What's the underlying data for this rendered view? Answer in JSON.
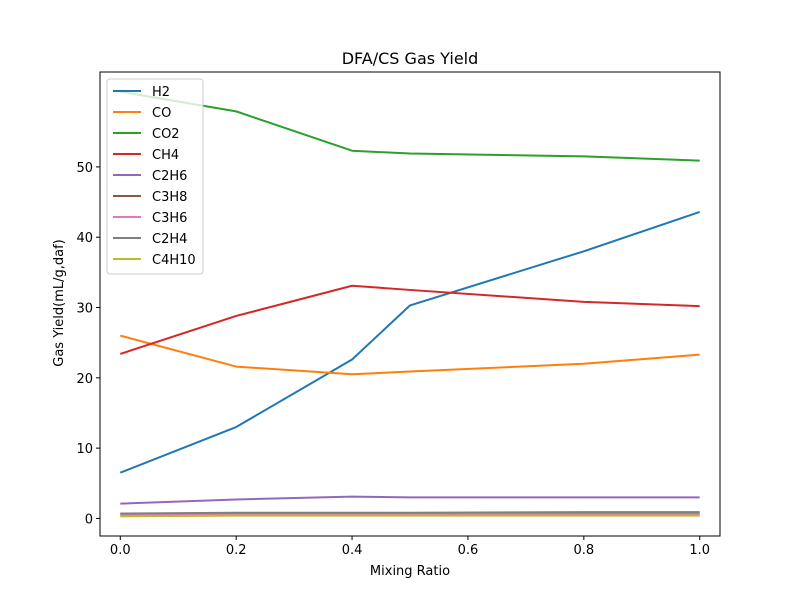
{
  "chart_data": {
    "type": "line",
    "title": "DFA/CS Gas Yield",
    "xlabel": "Mixing Ratio",
    "ylabel": "Gas Yield(mL/g,daf)",
    "xlim": [
      -0.035,
      1.035
    ],
    "ylim": [
      -2.5,
      63.5
    ],
    "xticks": [
      0.0,
      0.2,
      0.4,
      0.6,
      0.8,
      1.0
    ],
    "xtick_labels": [
      "0.0",
      "0.2",
      "0.4",
      "0.6",
      "0.8",
      "1.0"
    ],
    "yticks": [
      0,
      10,
      20,
      30,
      40,
      50
    ],
    "ytick_labels": [
      "0",
      "10",
      "20",
      "30",
      "40",
      "50"
    ],
    "grid": false,
    "legend_position": "top-left",
    "x": [
      0.0,
      0.2,
      0.4,
      0.5,
      0.8,
      1.0
    ],
    "series": [
      {
        "name": "H2",
        "color": "#1f77b4",
        "values": [
          6.5,
          13.0,
          22.6,
          30.3,
          38.0,
          43.6
        ]
      },
      {
        "name": "CO",
        "color": "#ff7f0e",
        "values": [
          26.0,
          21.6,
          20.5,
          20.9,
          22.0,
          23.3
        ]
      },
      {
        "name": "CO2",
        "color": "#2ca02c",
        "values": [
          60.7,
          57.9,
          52.3,
          51.9,
          51.5,
          50.9
        ]
      },
      {
        "name": "CH4",
        "color": "#d62728",
        "values": [
          23.4,
          28.8,
          33.1,
          32.5,
          30.8,
          30.2
        ]
      },
      {
        "name": "C2H6",
        "color": "#9467bd",
        "values": [
          2.1,
          2.7,
          3.1,
          3.0,
          3.0,
          3.0
        ]
      },
      {
        "name": "C3H8",
        "color": "#8c564b",
        "values": [
          0.6,
          0.7,
          0.7,
          0.7,
          0.7,
          0.7
        ]
      },
      {
        "name": "C3H6",
        "color": "#e377c2",
        "values": [
          0.5,
          0.6,
          0.6,
          0.6,
          0.6,
          0.6
        ]
      },
      {
        "name": "C2H4",
        "color": "#7f7f7f",
        "values": [
          0.7,
          0.8,
          0.8,
          0.8,
          0.9,
          0.9
        ]
      },
      {
        "name": "C4H10",
        "color": "#bcbd22",
        "values": [
          0.3,
          0.4,
          0.4,
          0.4,
          0.4,
          0.4
        ]
      }
    ]
  }
}
